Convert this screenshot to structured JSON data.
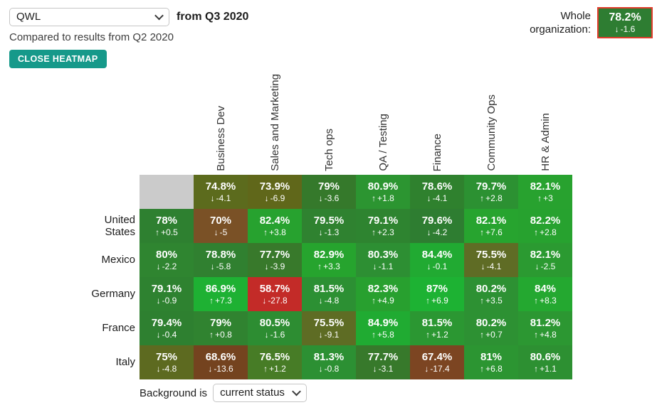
{
  "header": {
    "metric_select": "QWL",
    "period_label": "from Q3 2020",
    "compared_label": "Compared to results from Q2 2020",
    "close_button_label": "CLOSE HEATMAP",
    "whole_org_label": "Whole organization:",
    "whole_org_value": "78.2%",
    "whole_org_delta": "-1.6",
    "whole_org_direction": "down",
    "colors": {
      "accent_teal": "#16998a",
      "whole_org_bg": "#2e7d32",
      "whole_org_border": "#e23c2d",
      "empty_cell_gray": "#cbcbcb"
    }
  },
  "heatmap": {
    "columns": [
      "Business Dev",
      "Sales and Marketing",
      "Tech ops",
      "QA / Testing",
      "Finance",
      "Community Ops",
      "HR & Admin"
    ],
    "rows": [
      {
        "label": "",
        "cells": [
          {
            "empty": true
          },
          {
            "value": "74.8%",
            "delta": "-4.1",
            "dir": "down",
            "bg": "#5c6b1d"
          },
          {
            "value": "73.9%",
            "delta": "-6.9",
            "dir": "down",
            "bg": "#60671a"
          },
          {
            "value": "79%",
            "delta": "-3.6",
            "dir": "down",
            "bg": "#35792b"
          },
          {
            "value": "80.9%",
            "delta": "+1.8",
            "dir": "up",
            "bg": "#2c9531"
          },
          {
            "value": "78.6%",
            "delta": "-4.1",
            "dir": "down",
            "bg": "#2f812e"
          },
          {
            "value": "79.7%",
            "delta": "+2.8",
            "dir": "up",
            "bg": "#2c9132"
          },
          {
            "value": "82.1%",
            "delta": "+3",
            "dir": "up",
            "bg": "#28a22f"
          }
        ]
      },
      {
        "label": "United States",
        "cells": [
          {
            "value": "78%",
            "delta": "+0.5",
            "dir": "up",
            "bg": "#2e8030"
          },
          {
            "value": "70%",
            "delta": "-5",
            "dir": "down",
            "bg": "#7a5126"
          },
          {
            "value": "82.4%",
            "delta": "+3.8",
            "dir": "up",
            "bg": "#27a22f"
          },
          {
            "value": "79.5%",
            "delta": "-1.3",
            "dir": "down",
            "bg": "#2f8230"
          },
          {
            "value": "79.1%",
            "delta": "+2.3",
            "dir": "up",
            "bg": "#2e8430"
          },
          {
            "value": "79.6%",
            "delta": "-4.2",
            "dir": "down",
            "bg": "#2e7d31"
          },
          {
            "value": "82.1%",
            "delta": "+7.6",
            "dir": "up",
            "bg": "#27a42f"
          },
          {
            "value": "82.2%",
            "delta": "+2.8",
            "dir": "up",
            "bg": "#27a22f"
          }
        ]
      },
      {
        "label": "Mexico",
        "cells": [
          {
            "value": "80%",
            "delta": "-2.2",
            "dir": "down",
            "bg": "#2f8530"
          },
          {
            "value": "78.8%",
            "delta": "-5.8",
            "dir": "down",
            "bg": "#308030"
          },
          {
            "value": "77.7%",
            "delta": "-3.9",
            "dir": "down",
            "bg": "#38792b"
          },
          {
            "value": "82.9%",
            "delta": "+3.3",
            "dir": "up",
            "bg": "#26a42e"
          },
          {
            "value": "80.3%",
            "delta": "-1.1",
            "dir": "down",
            "bg": "#2d8f33"
          },
          {
            "value": "84.4%",
            "delta": "-0.1",
            "dir": "down",
            "bg": "#21aa32"
          },
          {
            "value": "75.5%",
            "delta": "-4.1",
            "dir": "down",
            "bg": "#5f6c25"
          },
          {
            "value": "82.1%",
            "delta": "-2.5",
            "dir": "down",
            "bg": "#2b9a31"
          }
        ]
      },
      {
        "label": "Germany",
        "cells": [
          {
            "value": "79.1%",
            "delta": "-0.9",
            "dir": "down",
            "bg": "#2e8230"
          },
          {
            "value": "86.9%",
            "delta": "+7.3",
            "dir": "up",
            "bg": "#1eb133"
          },
          {
            "value": "58.7%",
            "delta": "-27.8",
            "dir": "down",
            "bg": "#c32b28"
          },
          {
            "value": "81.5%",
            "delta": "-4.8",
            "dir": "down",
            "bg": "#2c9033"
          },
          {
            "value": "82.3%",
            "delta": "+4.9",
            "dir": "up",
            "bg": "#28a02f"
          },
          {
            "value": "87%",
            "delta": "+6.9",
            "dir": "up",
            "bg": "#1db233"
          },
          {
            "value": "80.2%",
            "delta": "+3.5",
            "dir": "up",
            "bg": "#2d9133"
          },
          {
            "value": "84%",
            "delta": "+8.3",
            "dir": "up",
            "bg": "#24a830"
          }
        ]
      },
      {
        "label": "France",
        "cells": [
          {
            "value": "79.4%",
            "delta": "-0.4",
            "dir": "down",
            "bg": "#2e8030"
          },
          {
            "value": "79%",
            "delta": "+0.8",
            "dir": "up",
            "bg": "#308330"
          },
          {
            "value": "80.5%",
            "delta": "-1.6",
            "dir": "down",
            "bg": "#2d8d32"
          },
          {
            "value": "75.5%",
            "delta": "-9.1",
            "dir": "down",
            "bg": "#5e6c24"
          },
          {
            "value": "84.9%",
            "delta": "+5.8",
            "dir": "up",
            "bg": "#20ab32"
          },
          {
            "value": "81.5%",
            "delta": "+1.2",
            "dir": "up",
            "bg": "#2b9732"
          },
          {
            "value": "80.2%",
            "delta": "+0.7",
            "dir": "up",
            "bg": "#2d9133"
          },
          {
            "value": "81.2%",
            "delta": "+4.8",
            "dir": "up",
            "bg": "#2c9732"
          }
        ]
      },
      {
        "label": "Italy",
        "cells": [
          {
            "value": "75%",
            "delta": "-4.8",
            "dir": "down",
            "bg": "#5d6a20"
          },
          {
            "value": "68.6%",
            "delta": "-13.6",
            "dir": "down",
            "bg": "#74431f"
          },
          {
            "value": "76.5%",
            "delta": "+1.2",
            "dir": "up",
            "bg": "#477c26"
          },
          {
            "value": "81.3%",
            "delta": "-0.8",
            "dir": "down",
            "bg": "#2c9033"
          },
          {
            "value": "77.7%",
            "delta": "-3.1",
            "dir": "down",
            "bg": "#37792b"
          },
          {
            "value": "67.4%",
            "delta": "-17.4",
            "dir": "down",
            "bg": "#7c4522"
          },
          {
            "value": "81%",
            "delta": "+6.8",
            "dir": "up",
            "bg": "#2c9532"
          },
          {
            "value": "80.6%",
            "delta": "+1.1",
            "dir": "up",
            "bg": "#2d9032"
          }
        ]
      }
    ]
  },
  "footer": {
    "background_label": "Background is",
    "background_select": "current status"
  }
}
